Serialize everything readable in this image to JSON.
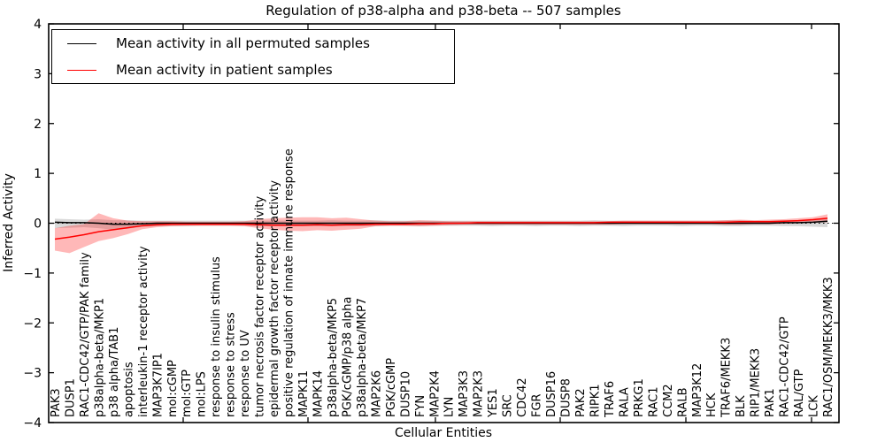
{
  "title": "Regulation of p38-alpha and p38-beta -- 507 samples",
  "axes": {
    "ylabel": "Inferred Activity",
    "xlabel": "Cellular Entities",
    "yticks": [
      "4",
      "3",
      "2",
      "1",
      "0",
      "−1",
      "−2",
      "−3",
      "−4"
    ],
    "ytick_values": [
      4,
      3,
      2,
      1,
      0,
      -1,
      -2,
      -3,
      -4
    ],
    "ylim": [
      -4,
      4
    ]
  },
  "legend": {
    "items": [
      {
        "label": "Mean activity in all permuted samples",
        "color": "#000000"
      },
      {
        "label": "Mean activity in patient samples",
        "color": "#ff0000"
      }
    ]
  },
  "chart_data": {
    "type": "line",
    "title": "Regulation of p38-alpha and p38-beta -- 507 samples",
    "xlabel": "Cellular Entities",
    "ylabel": "Inferred Activity",
    "ylim": [
      -4,
      4
    ],
    "grid": false,
    "zero_line": "black dotted horizontal line at y=0",
    "legend_position": "upper left",
    "categories": [
      "PAK3",
      "DUSP1",
      "RAC1-CDC42/GTP/PAK family",
      "p38alpha-beta/MKP1",
      "p38 alpha/TAB1",
      "apoptosis",
      "interleukin-1 receptor activity",
      "MAP3K7IP1",
      "mol:cGMP",
      "mol:GTP",
      "mol:LPS",
      "response to insulin stimulus",
      "response to stress",
      "response to UV",
      "tumor necrosis factor receptor activity",
      "epidermal growth factor receptor activity",
      "positive regulation of innate immune response",
      "MAPK11",
      "MAPK14",
      "p38alpha-beta/MKP5",
      "PGK/cGMP/p38 alpha",
      "p38alpha-beta/MKP7",
      "MAP2K6",
      "PGK/cGMP",
      "DUSP10",
      "FYN",
      "MAP2K4",
      "LYN",
      "MAP3K3",
      "MAP2K3",
      "YES1",
      "SRC",
      "CDC42",
      "FGR",
      "DUSP16",
      "DUSP8",
      "PAK2",
      "RIPK1",
      "TRAF6",
      "RALA",
      "PRKG1",
      "RAC1",
      "CCM2",
      "RALB",
      "MAP3K12",
      "HCK",
      "TRAF6/MEKK3",
      "BLK",
      "RIP1/MEKK3",
      "PAK1",
      "RAC1-CDC42/GTP",
      "RAL/GTP",
      "LCK",
      "RAC1/OSM/MEKK3/MKK3"
    ],
    "series": [
      {
        "name": "Mean activity in all permuted samples",
        "color": "#000000",
        "band_color": "rgba(0,0,0,0.15)",
        "values": [
          0.02,
          0.01,
          0.01,
          0.0,
          -0.02,
          -0.02,
          -0.01,
          0.0,
          0.0,
          0.0,
          0.0,
          0.0,
          0.0,
          0.0,
          0.0,
          0.0,
          0.0,
          0.0,
          0.0,
          0.0,
          0.0,
          0.0,
          0.0,
          0.0,
          0.0,
          0.0,
          0.0,
          0.0,
          0.0,
          0.0,
          0.0,
          0.0,
          0.0,
          0.0,
          0.0,
          0.0,
          0.0,
          0.0,
          0.0,
          0.0,
          0.0,
          0.0,
          0.0,
          0.0,
          0.0,
          0.0,
          0.0,
          0.0,
          0.0,
          0.0,
          0.01,
          0.01,
          0.02,
          0.04
        ],
        "band_low": [
          -0.1,
          -0.09,
          -0.08,
          -0.1,
          -0.13,
          -0.11,
          -0.07,
          -0.06,
          -0.06,
          -0.06,
          -0.05,
          -0.05,
          -0.05,
          -0.05,
          -0.06,
          -0.06,
          -0.06,
          -0.06,
          -0.06,
          -0.06,
          -0.06,
          -0.06,
          -0.06,
          -0.05,
          -0.05,
          -0.06,
          -0.05,
          -0.05,
          -0.05,
          -0.05,
          -0.06,
          -0.05,
          -0.05,
          -0.06,
          -0.05,
          -0.05,
          -0.06,
          -0.05,
          -0.05,
          -0.06,
          -0.05,
          -0.05,
          -0.05,
          -0.06,
          -0.05,
          -0.05,
          -0.06,
          -0.06,
          -0.05,
          -0.05,
          -0.06,
          -0.06,
          -0.07,
          -0.08
        ],
        "band_high": [
          0.09,
          0.08,
          0.07,
          0.08,
          0.06,
          0.06,
          0.05,
          0.05,
          0.05,
          0.05,
          0.05,
          0.05,
          0.05,
          0.05,
          0.05,
          0.05,
          0.05,
          0.05,
          0.05,
          0.06,
          0.05,
          0.05,
          0.06,
          0.05,
          0.05,
          0.05,
          0.05,
          0.05,
          0.05,
          0.05,
          0.05,
          0.05,
          0.05,
          0.05,
          0.05,
          0.05,
          0.05,
          0.06,
          0.05,
          0.05,
          0.05,
          0.05,
          0.05,
          0.05,
          0.05,
          0.05,
          0.06,
          0.06,
          0.05,
          0.05,
          0.06,
          0.06,
          0.07,
          0.09
        ]
      },
      {
        "name": "Mean activity in patient samples",
        "color": "#ff0000",
        "band_color": "rgba(255,0,0,0.28)",
        "values": [
          -0.32,
          -0.28,
          -0.23,
          -0.17,
          -0.13,
          -0.09,
          -0.05,
          -0.03,
          -0.02,
          -0.02,
          -0.02,
          -0.02,
          -0.02,
          -0.02,
          -0.03,
          -0.04,
          -0.04,
          -0.04,
          -0.03,
          -0.04,
          -0.03,
          -0.03,
          -0.02,
          -0.02,
          -0.02,
          -0.01,
          -0.01,
          0.0,
          0.0,
          0.01,
          0.01,
          0.01,
          0.01,
          0.01,
          0.01,
          0.01,
          0.01,
          0.01,
          0.02,
          0.02,
          0.02,
          0.02,
          0.02,
          0.02,
          0.02,
          0.02,
          0.02,
          0.03,
          0.03,
          0.03,
          0.04,
          0.05,
          0.07,
          0.1
        ],
        "band_low": [
          -0.55,
          -0.6,
          -0.48,
          -0.36,
          -0.3,
          -0.22,
          -0.12,
          -0.08,
          -0.06,
          -0.05,
          -0.05,
          -0.05,
          -0.05,
          -0.06,
          -0.1,
          -0.13,
          -0.15,
          -0.16,
          -0.14,
          -0.15,
          -0.13,
          -0.11,
          -0.06,
          -0.05,
          -0.05,
          -0.06,
          -0.05,
          -0.04,
          -0.03,
          -0.03,
          -0.03,
          -0.03,
          -0.03,
          -0.03,
          -0.03,
          -0.03,
          -0.03,
          -0.03,
          -0.03,
          -0.02,
          -0.02,
          -0.02,
          -0.02,
          -0.02,
          -0.02,
          -0.02,
          -0.03,
          -0.03,
          -0.02,
          -0.02,
          -0.01,
          0.0,
          0.01,
          0.02
        ],
        "band_high": [
          -0.1,
          -0.05,
          -0.02,
          0.2,
          0.1,
          0.05,
          0.04,
          0.04,
          0.04,
          0.03,
          0.03,
          0.03,
          0.03,
          0.04,
          0.08,
          0.1,
          0.11,
          0.12,
          0.12,
          0.1,
          0.11,
          0.08,
          0.05,
          0.04,
          0.04,
          0.06,
          0.05,
          0.04,
          0.04,
          0.04,
          0.04,
          0.04,
          0.04,
          0.04,
          0.04,
          0.04,
          0.04,
          0.04,
          0.04,
          0.05,
          0.05,
          0.05,
          0.05,
          0.05,
          0.05,
          0.05,
          0.06,
          0.07,
          0.06,
          0.07,
          0.08,
          0.1,
          0.12,
          0.18
        ]
      }
    ]
  }
}
